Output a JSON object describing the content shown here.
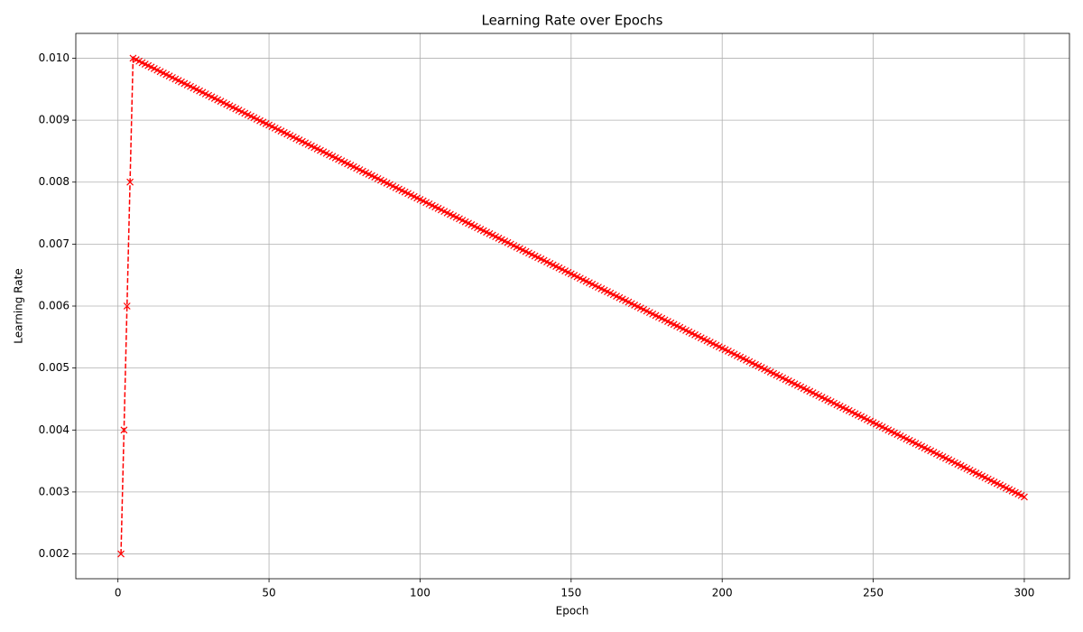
{
  "chart_data": {
    "type": "line",
    "title": "Learning Rate over Epochs",
    "x_label": "Epoch",
    "y_label": "Learning Rate",
    "x": [
      1,
      2,
      3,
      4,
      5,
      6,
      7,
      8,
      9,
      10,
      11,
      12,
      13,
      14,
      15,
      16,
      17,
      18,
      19,
      20,
      21,
      22,
      23,
      24,
      25,
      26,
      27,
      28,
      29,
      30,
      31,
      32,
      33,
      34,
      35,
      36,
      37,
      38,
      39,
      40,
      41,
      42,
      43,
      44,
      45,
      46,
      47,
      48,
      49,
      50,
      51,
      52,
      53,
      54,
      55,
      56,
      57,
      58,
      59,
      60,
      61,
      62,
      63,
      64,
      65,
      66,
      67,
      68,
      69,
      70,
      71,
      72,
      73,
      74,
      75,
      76,
      77,
      78,
      79,
      80,
      81,
      82,
      83,
      84,
      85,
      86,
      87,
      88,
      89,
      90,
      91,
      92,
      93,
      94,
      95,
      96,
      97,
      98,
      99,
      100,
      101,
      102,
      103,
      104,
      105,
      106,
      107,
      108,
      109,
      110,
      111,
      112,
      113,
      114,
      115,
      116,
      117,
      118,
      119,
      120,
      121,
      122,
      123,
      124,
      125,
      126,
      127,
      128,
      129,
      130,
      131,
      132,
      133,
      134,
      135,
      136,
      137,
      138,
      139,
      140,
      141,
      142,
      143,
      144,
      145,
      146,
      147,
      148,
      149,
      150,
      151,
      152,
      153,
      154,
      155,
      156,
      157,
      158,
      159,
      160,
      161,
      162,
      163,
      164,
      165,
      166,
      167,
      168,
      169,
      170,
      171,
      172,
      173,
      174,
      175,
      176,
      177,
      178,
      179,
      180,
      181,
      182,
      183,
      184,
      185,
      186,
      187,
      188,
      189,
      190,
      191,
      192,
      193,
      194,
      195,
      196,
      197,
      198,
      199,
      200,
      201,
      202,
      203,
      204,
      205,
      206,
      207,
      208,
      209,
      210,
      211,
      212,
      213,
      214,
      215,
      216,
      217,
      218,
      219,
      220,
      221,
      222,
      223,
      224,
      225,
      226,
      227,
      228,
      229,
      230,
      231,
      232,
      233,
      234,
      235,
      236,
      237,
      238,
      239,
      240,
      241,
      242,
      243,
      244,
      245,
      246,
      247,
      248,
      249,
      250,
      251,
      252,
      253,
      254,
      255,
      256,
      257,
      258,
      259,
      260,
      261,
      262,
      263,
      264,
      265,
      266,
      267,
      268,
      269,
      270,
      271,
      272,
      273,
      274,
      275,
      276,
      277,
      278,
      279,
      280,
      281,
      282,
      283,
      284,
      285,
      286,
      287,
      288,
      289,
      290,
      291,
      292,
      293,
      294,
      295,
      296,
      297,
      298,
      299,
      300
    ],
    "series": [
      {
        "color": "#ff0000",
        "line_style": "dashed",
        "marker": "x",
        "values": [
          0.002,
          0.004,
          0.006,
          0.008,
          0.01,
          0.009976,
          0.009952,
          0.009928,
          0.009904,
          0.00988,
          0.009856,
          0.009832,
          0.009808,
          0.009784,
          0.00976,
          0.009736,
          0.009712,
          0.009688,
          0.009664,
          0.00964,
          0.009616,
          0.009592,
          0.009568,
          0.009544,
          0.00952,
          0.009496,
          0.009472,
          0.009448,
          0.009424,
          0.0094,
          0.009376,
          0.009352,
          0.009328,
          0.009304,
          0.00928,
          0.009256,
          0.009232,
          0.009208,
          0.009184,
          0.00916,
          0.009136,
          0.009112,
          0.009088,
          0.009064,
          0.00904,
          0.009016,
          0.008992,
          0.008968,
          0.008944,
          0.00892,
          0.008896,
          0.008872,
          0.008848,
          0.008824,
          0.0088,
          0.008776,
          0.008752,
          0.008728,
          0.008704,
          0.00868,
          0.008656,
          0.008632,
          0.008608,
          0.008584,
          0.00856,
          0.008536,
          0.008512,
          0.008488,
          0.008464,
          0.00844,
          0.008416,
          0.008392,
          0.008368,
          0.008344,
          0.00832,
          0.008296,
          0.008272,
          0.008248,
          0.008224,
          0.0082,
          0.008176,
          0.008152,
          0.008128,
          0.008104,
          0.00808,
          0.008056,
          0.008032,
          0.008008,
          0.007984,
          0.00796,
          0.007936,
          0.007912,
          0.007888,
          0.007864,
          0.00784,
          0.007816,
          0.007792,
          0.007768,
          0.007744,
          0.00772,
          0.007696,
          0.007672,
          0.007648,
          0.007624,
          0.0076,
          0.007576,
          0.007552,
          0.007528,
          0.007504,
          0.00748,
          0.007456,
          0.007432,
          0.007408,
          0.007384,
          0.00736,
          0.007336,
          0.007312,
          0.007288,
          0.007264,
          0.00724,
          0.007216,
          0.007192,
          0.007168,
          0.007144,
          0.00712,
          0.007096,
          0.007072,
          0.007048,
          0.007024,
          0.007,
          0.006976,
          0.006952,
          0.006928,
          0.006904,
          0.00688,
          0.006856,
          0.006832,
          0.006808,
          0.006784,
          0.00676,
          0.006736,
          0.006712,
          0.006688,
          0.006664,
          0.00664,
          0.006616,
          0.006592,
          0.006568,
          0.006544,
          0.00652,
          0.006496,
          0.006472,
          0.006448,
          0.006424,
          0.0064,
          0.006376,
          0.006352,
          0.006328,
          0.006304,
          0.00628,
          0.006256,
          0.006232,
          0.006208,
          0.006184,
          0.00616,
          0.006136,
          0.006112,
          0.006088,
          0.006064,
          0.00604,
          0.006016,
          0.005992,
          0.005968,
          0.005944,
          0.00592,
          0.005896,
          0.005872,
          0.005848,
          0.005824,
          0.0058,
          0.005776,
          0.005752,
          0.005728,
          0.005704,
          0.00568,
          0.005656,
          0.005632,
          0.005608,
          0.005584,
          0.00556,
          0.005536,
          0.005512,
          0.005488,
          0.005464,
          0.00544,
          0.005416,
          0.005392,
          0.005368,
          0.005344,
          0.00532,
          0.005296,
          0.005272,
          0.005248,
          0.005224,
          0.0052,
          0.005176,
          0.005152,
          0.005128,
          0.005104,
          0.00508,
          0.005056,
          0.005032,
          0.005008,
          0.004984,
          0.00496,
          0.004936,
          0.004912,
          0.004888,
          0.004864,
          0.00484,
          0.004816,
          0.004792,
          0.004768,
          0.004744,
          0.00472,
          0.004696,
          0.004672,
          0.004648,
          0.004624,
          0.0046,
          0.004576,
          0.004552,
          0.004528,
          0.004504,
          0.00448,
          0.004456,
          0.004432,
          0.004408,
          0.004384,
          0.00436,
          0.004336,
          0.004312,
          0.004288,
          0.004264,
          0.00424,
          0.004216,
          0.004192,
          0.004168,
          0.004144,
          0.00412,
          0.004096,
          0.004072,
          0.004048,
          0.004024,
          0.004,
          0.003976,
          0.003952,
          0.003928,
          0.003904,
          0.00388,
          0.003856,
          0.003832,
          0.003808,
          0.003784,
          0.00376,
          0.003736,
          0.003712,
          0.003688,
          0.003664,
          0.00364,
          0.003616,
          0.003592,
          0.003568,
          0.003544,
          0.00352,
          0.003496,
          0.003472,
          0.003448,
          0.003424,
          0.0034,
          0.003376,
          0.003352,
          0.003328,
          0.003304,
          0.00328,
          0.003256,
          0.003232,
          0.003208,
          0.003184,
          0.00316,
          0.003136,
          0.003112,
          0.003088,
          0.003064,
          0.00304,
          0.003016,
          0.002992,
          0.002968,
          0.002944,
          0.00292
        ]
      }
    ],
    "xlim": [
      -13.95,
      314.95
    ],
    "xticks": [
      0,
      50,
      100,
      150,
      200,
      250,
      300
    ],
    "ylim": [
      0.0016,
      0.0104
    ],
    "yticks": [
      0.002,
      0.003,
      0.004,
      0.005,
      0.006,
      0.007,
      0.008,
      0.009,
      {
        "value": 0.01,
        "label": "0.010"
      }
    ],
    "grid": true
  }
}
